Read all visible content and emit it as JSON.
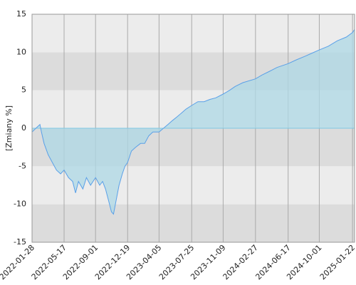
{
  "chart_data": {
    "type": "area",
    "y_label": "[Zmiany %]",
    "x": [
      "2022-01-28",
      "2022-02-10",
      "2022-02-24",
      "2022-03-01",
      "2022-03-10",
      "2022-03-24",
      "2022-04-07",
      "2022-04-21",
      "2022-05-05",
      "2022-05-17",
      "2022-06-01",
      "2022-06-15",
      "2022-06-25",
      "2022-07-05",
      "2022-07-20",
      "2022-08-01",
      "2022-08-15",
      "2022-09-01",
      "2022-09-15",
      "2022-09-25",
      "2022-10-05",
      "2022-10-15",
      "2022-10-25",
      "2022-11-01",
      "2022-11-10",
      "2022-11-20",
      "2022-12-01",
      "2022-12-10",
      "2022-12-19",
      "2023-01-01",
      "2023-01-15",
      "2023-02-01",
      "2023-02-15",
      "2023-03-01",
      "2023-03-15",
      "2023-04-05",
      "2023-04-20",
      "2023-05-05",
      "2023-05-20",
      "2023-06-05",
      "2023-06-20",
      "2023-07-05",
      "2023-07-25",
      "2023-08-15",
      "2023-09-05",
      "2023-09-25",
      "2023-10-15",
      "2023-11-09",
      "2023-12-01",
      "2023-12-20",
      "2024-01-15",
      "2024-02-27",
      "2024-03-20",
      "2024-04-15",
      "2024-05-10",
      "2024-06-17",
      "2024-07-15",
      "2024-08-15",
      "2024-09-01",
      "2024-10-01",
      "2024-11-01",
      "2024-12-01",
      "2025-01-01",
      "2025-01-22",
      "2025-01-29"
    ],
    "values": [
      -0.5,
      0,
      0.5,
      -0.5,
      -2,
      -3.5,
      -4.5,
      -5.5,
      -6,
      -5.5,
      -6.5,
      -7,
      -8.5,
      -7,
      -8,
      -6.5,
      -7.5,
      -6.5,
      -7.5,
      -7,
      -8,
      -9.5,
      -11,
      -11.3,
      -9.5,
      -7.5,
      -6,
      -5,
      -4.5,
      -3,
      -2.5,
      -2,
      -2,
      -1,
      -0.5,
      -0.5,
      0,
      0.5,
      1,
      1.5,
      2,
      2.5,
      3,
      3.5,
      3.5,
      3.8,
      4,
      4.5,
      5,
      5.5,
      6,
      6.5,
      7,
      7.5,
      8,
      8.5,
      9,
      9.5,
      9.8,
      10.3,
      10.8,
      11.5,
      12,
      12.6,
      13
    ],
    "line_color": "#5aa0e8",
    "fill_color": "#add8e6",
    "xlim": [
      "2022-01-28",
      "2025-01-29"
    ],
    "xticks": [
      "2022-01-28",
      "2022-05-17",
      "2022-09-01",
      "2022-12-19",
      "2023-04-05",
      "2023-07-25",
      "2023-11-09",
      "2024-02-27",
      "2024-06-17",
      "2024-10-01",
      "2025-01-22"
    ],
    "ylim": [
      -15,
      15
    ],
    "yticks": [
      -15,
      -10,
      -5,
      0,
      5,
      10,
      15
    ],
    "grid": true
  }
}
